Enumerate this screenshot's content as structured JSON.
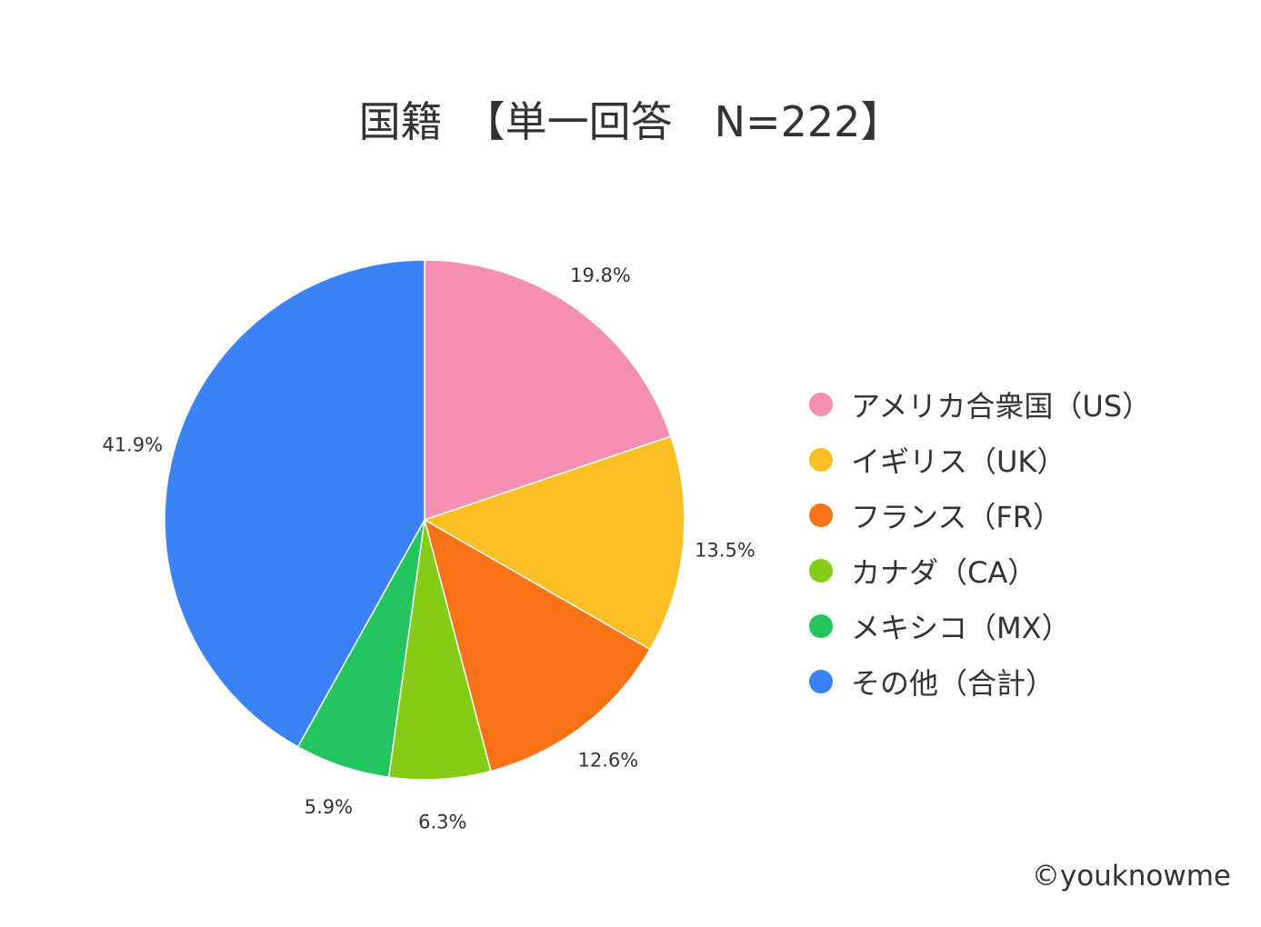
{
  "chart_data": {
    "type": "pie",
    "title": "国籍　【単一回答　N=222】",
    "start_angle": "top",
    "direction": "clockwise",
    "legend_position": "right",
    "slices": [
      {
        "name": "アメリカ合衆国（US）",
        "value": 19.8,
        "label": "19.8%",
        "color": "#F48FB1"
      },
      {
        "name": "イギリス（UK）",
        "value": 13.5,
        "label": "13.5%",
        "color": "#FBBF24"
      },
      {
        "name": "フランス（FR）",
        "value": 12.6,
        "label": "12.6%",
        "color": "#F97316"
      },
      {
        "name": "カナダ（CA）",
        "value": 6.3,
        "label": "6.3%",
        "color": "#84CC16"
      },
      {
        "name": "メキシコ（MX）",
        "value": 5.9,
        "label": "5.9%",
        "color": "#22C55E"
      },
      {
        "name": "その他（合計）",
        "value": 41.9,
        "label": "41.9%",
        "color": "#3B82F6"
      }
    ]
  },
  "credit": "©youknowme"
}
